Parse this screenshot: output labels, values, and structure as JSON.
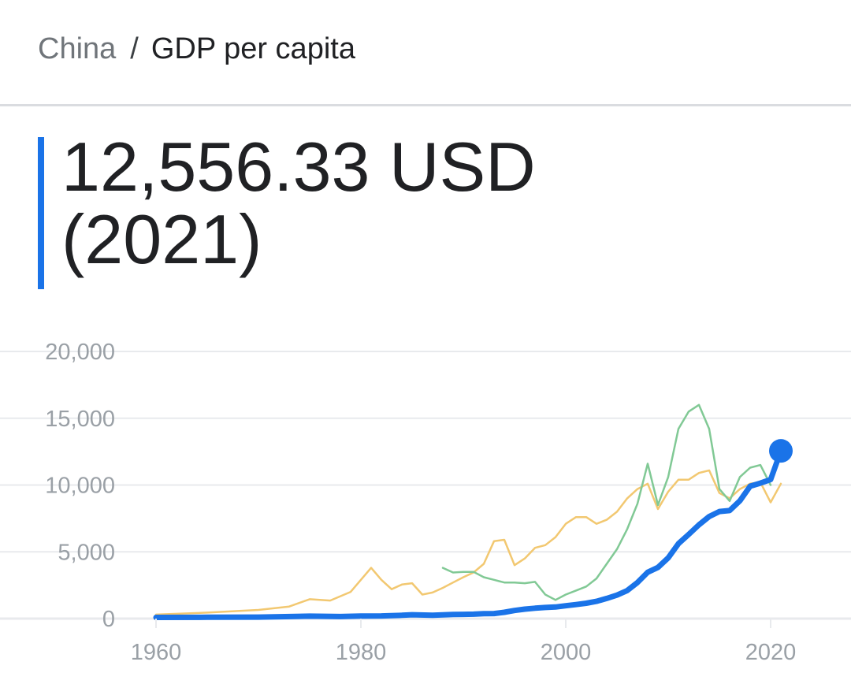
{
  "breadcrumb": {
    "parent": "China",
    "separator": "/",
    "current": "GDP per capita"
  },
  "headline": {
    "value": "12,556.33 USD",
    "year": "(2021)"
  },
  "colors": {
    "accent": "#1a73e8",
    "series_primary": "#1a73e8",
    "series_yellow": "#f2c871",
    "series_green": "#81c995",
    "grid": "#e8eaed",
    "tick_text": "#9aa0a6"
  },
  "chart_data": {
    "type": "line",
    "title": "",
    "xlabel": "",
    "ylabel": "",
    "xlim": [
      1960,
      2021
    ],
    "ylim": [
      0,
      20000
    ],
    "grid": true,
    "y_ticks": [
      0,
      5000,
      10000,
      15000,
      20000
    ],
    "y_tick_labels": [
      "0",
      "5,000",
      "10,000",
      "15,000",
      "20,000"
    ],
    "x_ticks": [
      1960,
      1980,
      2000,
      2020
    ],
    "x_tick_labels": [
      "1960",
      "1980",
      "2000",
      "2020"
    ],
    "series": [
      {
        "color": "#f2c871",
        "width": 2.5,
        "points": [
          [
            1960,
            300
          ],
          [
            1965,
            450
          ],
          [
            1970,
            650
          ],
          [
            1973,
            900
          ],
          [
            1975,
            1450
          ],
          [
            1977,
            1350
          ],
          [
            1979,
            2000
          ],
          [
            1981,
            3800
          ],
          [
            1982,
            2900
          ],
          [
            1983,
            2200
          ],
          [
            1984,
            2550
          ],
          [
            1985,
            2650
          ],
          [
            1986,
            1800
          ],
          [
            1987,
            1950
          ],
          [
            1988,
            2300
          ],
          [
            1989,
            2700
          ],
          [
            1990,
            3100
          ],
          [
            1991,
            3450
          ],
          [
            1992,
            4100
          ],
          [
            1993,
            5800
          ],
          [
            1994,
            5900
          ],
          [
            1995,
            4000
          ],
          [
            1996,
            4500
          ],
          [
            1997,
            5300
          ],
          [
            1998,
            5500
          ],
          [
            1999,
            6100
          ],
          [
            2000,
            7100
          ],
          [
            2001,
            7600
          ],
          [
            2002,
            7600
          ],
          [
            2003,
            7100
          ],
          [
            2004,
            7400
          ],
          [
            2005,
            8000
          ],
          [
            2006,
            9000
          ],
          [
            2007,
            9700
          ],
          [
            2008,
            10100
          ],
          [
            2009,
            8200
          ],
          [
            2010,
            9500
          ],
          [
            2011,
            10400
          ],
          [
            2012,
            10400
          ],
          [
            2013,
            10900
          ],
          [
            2014,
            11100
          ],
          [
            2015,
            9400
          ],
          [
            2016,
            9000
          ],
          [
            2017,
            9700
          ],
          [
            2018,
            10100
          ],
          [
            2019,
            10200
          ],
          [
            2020,
            8700
          ],
          [
            2021,
            10100
          ]
        ]
      },
      {
        "color": "#81c995",
        "width": 2.5,
        "points": [
          [
            1988,
            3800
          ],
          [
            1989,
            3450
          ],
          [
            1990,
            3500
          ],
          [
            1991,
            3500
          ],
          [
            1992,
            3100
          ],
          [
            1993,
            2900
          ],
          [
            1994,
            2700
          ],
          [
            1995,
            2700
          ],
          [
            1996,
            2650
          ],
          [
            1997,
            2750
          ],
          [
            1998,
            1800
          ],
          [
            1999,
            1400
          ],
          [
            2000,
            1800
          ],
          [
            2001,
            2100
          ],
          [
            2002,
            2400
          ],
          [
            2003,
            3000
          ],
          [
            2004,
            4100
          ],
          [
            2005,
            5200
          ],
          [
            2006,
            6700
          ],
          [
            2007,
            8600
          ],
          [
            2008,
            11600
          ],
          [
            2009,
            8500
          ],
          [
            2010,
            10600
          ],
          [
            2011,
            14200
          ],
          [
            2012,
            15500
          ],
          [
            2013,
            16000
          ],
          [
            2014,
            14200
          ],
          [
            2015,
            9700
          ],
          [
            2016,
            8800
          ],
          [
            2017,
            10600
          ],
          [
            2018,
            11300
          ],
          [
            2019,
            11500
          ],
          [
            2020,
            10000
          ]
        ]
      },
      {
        "color": "#1a73e8",
        "width": 7,
        "points": [
          [
            1960,
            90
          ],
          [
            1965,
            100
          ],
          [
            1970,
            110
          ],
          [
            1975,
            180
          ],
          [
            1978,
            155
          ],
          [
            1980,
            190
          ],
          [
            1982,
            200
          ],
          [
            1984,
            250
          ],
          [
            1985,
            290
          ],
          [
            1987,
            250
          ],
          [
            1989,
            310
          ],
          [
            1990,
            320
          ],
          [
            1991,
            330
          ],
          [
            1992,
            370
          ],
          [
            1993,
            380
          ],
          [
            1994,
            470
          ],
          [
            1995,
            610
          ],
          [
            1996,
            710
          ],
          [
            1997,
            780
          ],
          [
            1998,
            830
          ],
          [
            1999,
            870
          ],
          [
            2000,
            960
          ],
          [
            2001,
            1050
          ],
          [
            2002,
            1150
          ],
          [
            2003,
            1290
          ],
          [
            2004,
            1510
          ],
          [
            2005,
            1760
          ],
          [
            2006,
            2100
          ],
          [
            2007,
            2700
          ],
          [
            2008,
            3470
          ],
          [
            2009,
            3830
          ],
          [
            2010,
            4550
          ],
          [
            2011,
            5610
          ],
          [
            2012,
            6300
          ],
          [
            2013,
            7020
          ],
          [
            2014,
            7640
          ],
          [
            2015,
            8020
          ],
          [
            2016,
            8090
          ],
          [
            2017,
            8820
          ],
          [
            2018,
            9910
          ],
          [
            2019,
            10140
          ],
          [
            2020,
            10410
          ],
          [
            2021,
            12556
          ]
        ]
      }
    ],
    "highlight_point": [
      2021,
      12556
    ]
  }
}
